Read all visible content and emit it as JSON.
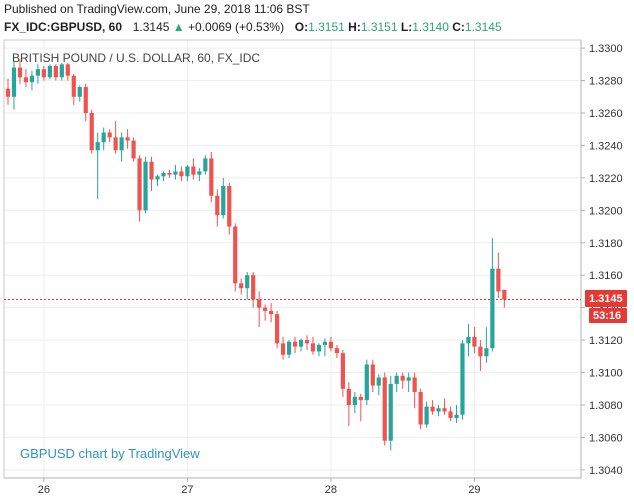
{
  "header": {
    "published": "Published on TradingView.com, June 29, 2018 11:06 BST",
    "symbol": "FX_IDC:GBPUSD, 60",
    "last": "1.3145",
    "arrow": "▲",
    "change": "+0.0069 (+0.53%)",
    "open_label": "O:",
    "open": "1.3151",
    "high_label": "H:",
    "high": "1.3151",
    "low_label": "L:",
    "low": "1.3140",
    "close_label": "C:",
    "close": "1.3145"
  },
  "colors": {
    "up": "#26a69a",
    "down": "#ef5350",
    "accent_up": "#2aa876",
    "price_line": "#e53935"
  },
  "chart_data": {
    "type": "candlestick",
    "title": "BRITISH POUND / U.S. DOLLAR, 60, FX_IDC",
    "watermark": "GBPUSD chart by TradingView",
    "ylim": [
      1.3035,
      1.3305
    ],
    "yticks": [
      "1.3300",
      "1.3280",
      "1.3260",
      "1.3240",
      "1.3220",
      "1.3200",
      "1.3180",
      "1.3160",
      "1.3140",
      "1.3120",
      "1.3100",
      "1.3080",
      "1.3060",
      "1.3040"
    ],
    "xticks": [
      {
        "label": "26",
        "pos": 6
      },
      {
        "label": "27",
        "pos": 30
      },
      {
        "label": "28",
        "pos": 54
      },
      {
        "label": "29",
        "pos": 78
      }
    ],
    "grid": true,
    "price_label": "1.3145",
    "countdown": "53:16",
    "current_price": 1.3145,
    "candles": [
      [
        1.3275,
        1.3281,
        1.3265,
        1.327
      ],
      [
        1.327,
        1.3292,
        1.3262,
        1.3288
      ],
      [
        1.3288,
        1.3293,
        1.3278,
        1.3282
      ],
      [
        1.3282,
        1.3287,
        1.3276,
        1.3279
      ],
      [
        1.3279,
        1.3286,
        1.3274,
        1.3283
      ],
      [
        1.3283,
        1.329,
        1.3278,
        1.3287
      ],
      [
        1.3287,
        1.3289,
        1.328,
        1.3282
      ],
      [
        1.3282,
        1.329,
        1.3281,
        1.3289
      ],
      [
        1.3289,
        1.329,
        1.328,
        1.3282
      ],
      [
        1.3282,
        1.3291,
        1.328,
        1.329
      ],
      [
        1.329,
        1.3291,
        1.328,
        1.3283
      ],
      [
        1.3283,
        1.3284,
        1.3265,
        1.327
      ],
      [
        1.327,
        1.3277,
        1.3267,
        1.3276
      ],
      [
        1.3276,
        1.3278,
        1.3255,
        1.326
      ],
      [
        1.326,
        1.3262,
        1.3235,
        1.3237
      ],
      [
        1.3237,
        1.3248,
        1.3207,
        1.3242
      ],
      [
        1.3242,
        1.3251,
        1.3237,
        1.3248
      ],
      [
        1.3248,
        1.325,
        1.3242,
        1.3245
      ],
      [
        1.3245,
        1.3255,
        1.3235,
        1.3237
      ],
      [
        1.3237,
        1.3248,
        1.323,
        1.3245
      ],
      [
        1.3245,
        1.325,
        1.3238,
        1.3243
      ],
      [
        1.3243,
        1.3245,
        1.323,
        1.3232
      ],
      [
        1.3232,
        1.3234,
        1.3193,
        1.32
      ],
      [
        1.32,
        1.3233,
        1.3198,
        1.323
      ],
      [
        1.323,
        1.3233,
        1.3212,
        1.3219
      ],
      [
        1.3219,
        1.3222,
        1.3215,
        1.3221
      ],
      [
        1.3221,
        1.3224,
        1.3218,
        1.3223
      ],
      [
        1.3223,
        1.3225,
        1.322,
        1.3222
      ],
      [
        1.3222,
        1.3228,
        1.3219,
        1.3224
      ],
      [
        1.3224,
        1.3227,
        1.3218,
        1.3221
      ],
      [
        1.3221,
        1.3228,
        1.3218,
        1.3227
      ],
      [
        1.3227,
        1.3232,
        1.3219,
        1.3222
      ],
      [
        1.3222,
        1.3226,
        1.3218,
        1.3224
      ],
      [
        1.3224,
        1.3234,
        1.3222,
        1.3232
      ],
      [
        1.3232,
        1.3236,
        1.3205,
        1.3209
      ],
      [
        1.3209,
        1.3213,
        1.319,
        1.3197
      ],
      [
        1.3197,
        1.322,
        1.3195,
        1.3215
      ],
      [
        1.3215,
        1.3217,
        1.3185,
        1.319
      ],
      [
        1.319,
        1.3192,
        1.315,
        1.3155
      ],
      [
        1.3155,
        1.3158,
        1.3148,
        1.3152
      ],
      [
        1.3152,
        1.3162,
        1.3145,
        1.316
      ],
      [
        1.316,
        1.3162,
        1.314,
        1.3145
      ],
      [
        1.3145,
        1.315,
        1.3128,
        1.314
      ],
      [
        1.314,
        1.3142,
        1.3132,
        1.3138
      ],
      [
        1.3138,
        1.3143,
        1.3131,
        1.3136
      ],
      [
        1.3136,
        1.3138,
        1.3115,
        1.3118
      ],
      [
        1.3118,
        1.3122,
        1.3108,
        1.3111
      ],
      [
        1.3111,
        1.312,
        1.3109,
        1.3119
      ],
      [
        1.3119,
        1.3122,
        1.3112,
        1.3116
      ],
      [
        1.3116,
        1.3121,
        1.3113,
        1.312
      ],
      [
        1.312,
        1.3123,
        1.3114,
        1.3118
      ],
      [
        1.3118,
        1.3122,
        1.3111,
        1.3113
      ],
      [
        1.3113,
        1.3118,
        1.311,
        1.3117
      ],
      [
        1.3117,
        1.3121,
        1.311,
        1.3119
      ],
      [
        1.3119,
        1.3122,
        1.3113,
        1.3115
      ],
      [
        1.3115,
        1.3117,
        1.3109,
        1.3112
      ],
      [
        1.3112,
        1.3114,
        1.3085,
        1.309
      ],
      [
        1.309,
        1.3094,
        1.3067,
        1.308
      ],
      [
        1.308,
        1.3088,
        1.3075,
        1.3085
      ],
      [
        1.3085,
        1.3087,
        1.307,
        1.3083
      ],
      [
        1.3083,
        1.3108,
        1.308,
        1.3105
      ],
      [
        1.3105,
        1.3108,
        1.3088,
        1.3092
      ],
      [
        1.3092,
        1.3099,
        1.3086,
        1.3097
      ],
      [
        1.3097,
        1.31,
        1.3055,
        1.3058
      ],
      [
        1.3058,
        1.3098,
        1.3052,
        1.3093
      ],
      [
        1.3093,
        1.31,
        1.3088,
        1.3098
      ],
      [
        1.3098,
        1.31,
        1.309,
        1.3095
      ],
      [
        1.3095,
        1.31,
        1.3088,
        1.3097
      ],
      [
        1.3097,
        1.31,
        1.3078,
        1.3088
      ],
      [
        1.3088,
        1.309,
        1.3065,
        1.3068
      ],
      [
        1.3068,
        1.3082,
        1.3066,
        1.3079
      ],
      [
        1.3079,
        1.3083,
        1.3074,
        1.3076
      ],
      [
        1.3076,
        1.308,
        1.3073,
        1.3078
      ],
      [
        1.3078,
        1.3084,
        1.3074,
        1.3076
      ],
      [
        1.3076,
        1.3079,
        1.307,
        1.3072
      ],
      [
        1.3072,
        1.308,
        1.3069,
        1.3074
      ],
      [
        1.3074,
        1.312,
        1.3071,
        1.3118
      ],
      [
        1.3118,
        1.313,
        1.311,
        1.3122
      ],
      [
        1.3122,
        1.3128,
        1.3112,
        1.3116
      ],
      [
        1.3116,
        1.312,
        1.3101,
        1.311
      ],
      [
        1.311,
        1.3128,
        1.3106,
        1.3115
      ],
      [
        1.3115,
        1.3183,
        1.3113,
        1.3164
      ],
      [
        1.3164,
        1.3174,
        1.3146,
        1.315
      ],
      [
        1.3151,
        1.3151,
        1.314,
        1.3145
      ]
    ]
  }
}
